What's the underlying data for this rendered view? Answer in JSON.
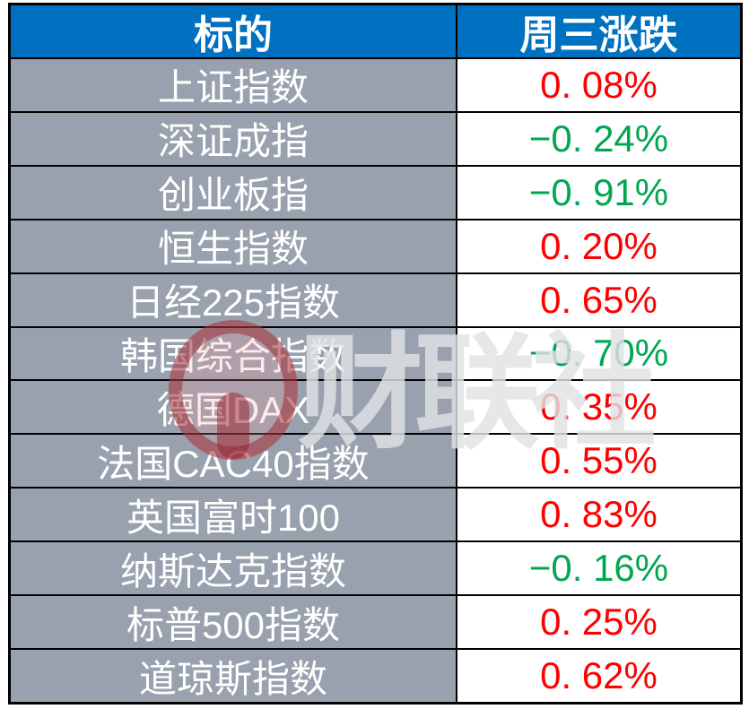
{
  "table": {
    "header": {
      "target": "标的",
      "change": "周三涨跌"
    },
    "rows": [
      {
        "name": "上证指数",
        "change": "0. 08%",
        "color": "#ff0000"
      },
      {
        "name": "深证成指",
        "change": "−0. 24%",
        "color": "#00a650"
      },
      {
        "name": "创业板指",
        "change": "−0. 91%",
        "color": "#00a650"
      },
      {
        "name": "恒生指数",
        "change": "0. 20%",
        "color": "#ff0000"
      },
      {
        "name": "日经225指数",
        "change": "0. 65%",
        "color": "#ff0000"
      },
      {
        "name": "韩国综合指数",
        "change": "−0. 70%",
        "color": "#00a650"
      },
      {
        "name": "德国DAX",
        "change": "0. 35%",
        "color": "#ff0000"
      },
      {
        "name": "法国CAC40指数",
        "change": "0. 55%",
        "color": "#ff0000"
      },
      {
        "name": "英国富时100",
        "change": "0. 83%",
        "color": "#ff0000"
      },
      {
        "name": "纳斯达克指数",
        "change": "−0. 16%",
        "color": "#00a650"
      },
      {
        "name": "标普500指数",
        "change": "0. 25%",
        "color": "#ff0000"
      },
      {
        "name": "道琼斯指数",
        "change": "0. 62%",
        "color": "#ff0000"
      }
    ]
  },
  "watermark": {
    "text": "财联社",
    "logo": "cailianshe-logo"
  },
  "colors": {
    "header_bg": "#0070c0",
    "header_text": "#ffffff",
    "label_bg": "#98a1ad",
    "label_text": "#ffffff",
    "value_bg": "#ffffff",
    "up": "#ff0000",
    "down": "#00a650",
    "border": "#000000",
    "watermark_red": "rgba(150,28,40,0.48)",
    "watermark_gray": "rgba(225,226,228,0.82)"
  },
  "chart_data": {
    "type": "table",
    "columns": [
      "标的",
      "周三涨跌"
    ],
    "categories": [
      "上证指数",
      "深证成指",
      "创业板指",
      "恒生指数",
      "日经225指数",
      "韩国综合指数",
      "德国DAX",
      "法国CAC40指数",
      "英国富时100",
      "纳斯达克指数",
      "标普500指数",
      "道琼斯指数"
    ],
    "values": [
      0.08,
      -0.24,
      -0.91,
      0.2,
      0.65,
      -0.7,
      0.35,
      0.55,
      0.83,
      -0.16,
      0.25,
      0.62
    ],
    "unit": "%",
    "up_color": "#ff0000",
    "down_color": "#00a650",
    "legend_position": "none",
    "grid": true
  }
}
